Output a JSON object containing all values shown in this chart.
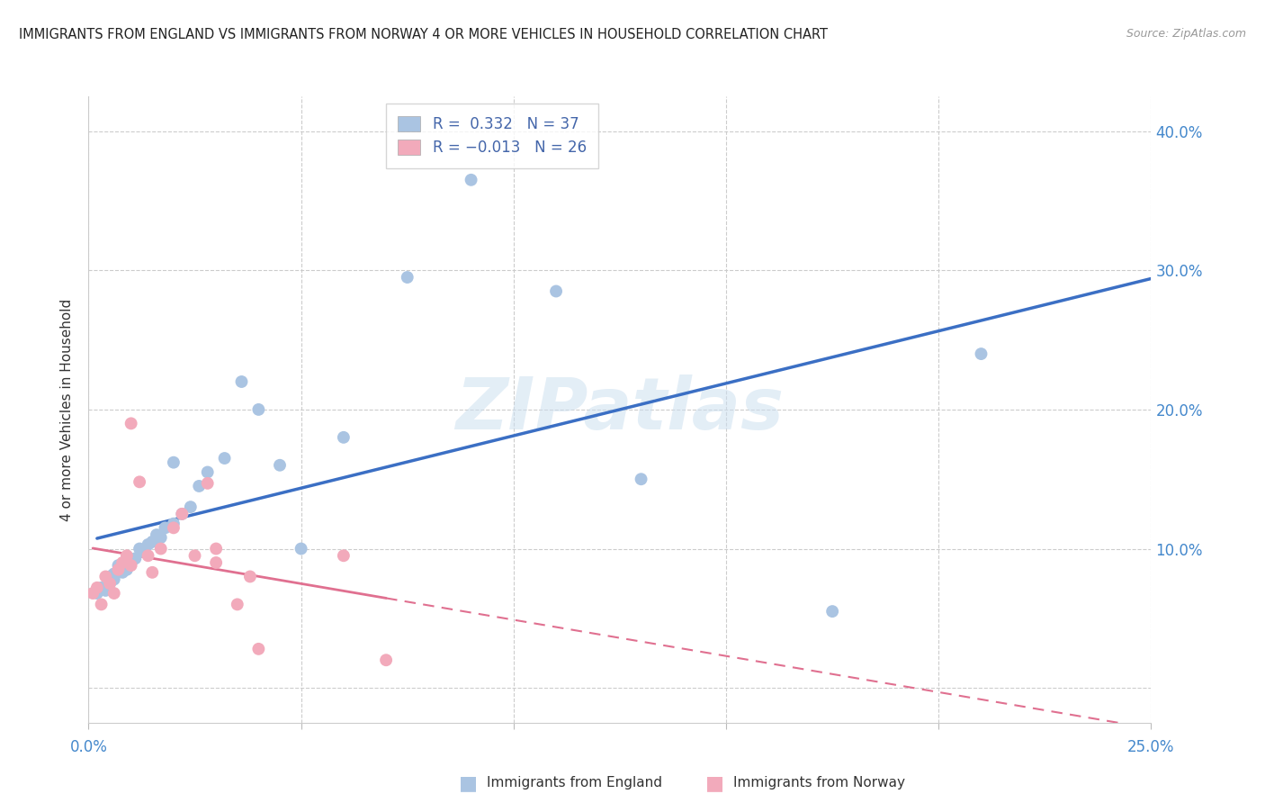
{
  "title": "IMMIGRANTS FROM ENGLAND VS IMMIGRANTS FROM NORWAY 4 OR MORE VEHICLES IN HOUSEHOLD CORRELATION CHART",
  "source": "Source: ZipAtlas.com",
  "ylabel": "4 or more Vehicles in Household",
  "xlim": [
    0.0,
    0.25
  ],
  "ylim": [
    -0.025,
    0.425
  ],
  "yticks": [
    0.0,
    0.1,
    0.2,
    0.3,
    0.4
  ],
  "ytick_labels": [
    "",
    "10.0%",
    "20.0%",
    "30.0%",
    "40.0%"
  ],
  "xticks": [
    0.0,
    0.05,
    0.1,
    0.15,
    0.2,
    0.25
  ],
  "england_R": 0.332,
  "england_N": 37,
  "norway_R": -0.013,
  "norway_N": 26,
  "england_color": "#aac4e2",
  "norway_color": "#f2aabb",
  "england_line_color": "#3b6fc4",
  "norway_line_color": "#e07090",
  "background_color": "#ffffff",
  "watermark": "ZIPatlas",
  "england_x": [
    0.002,
    0.003,
    0.004,
    0.005,
    0.005,
    0.006,
    0.006,
    0.007,
    0.008,
    0.009,
    0.01,
    0.011,
    0.012,
    0.013,
    0.014,
    0.015,
    0.016,
    0.017,
    0.018,
    0.02,
    0.022,
    0.024,
    0.026,
    0.028,
    0.032,
    0.036,
    0.04,
    0.045,
    0.05,
    0.06,
    0.075,
    0.09,
    0.11,
    0.13,
    0.175,
    0.21,
    0.02
  ],
  "england_y": [
    0.068,
    0.072,
    0.07,
    0.075,
    0.08,
    0.078,
    0.082,
    0.088,
    0.083,
    0.085,
    0.09,
    0.093,
    0.1,
    0.098,
    0.103,
    0.105,
    0.11,
    0.108,
    0.115,
    0.118,
    0.125,
    0.13,
    0.145,
    0.155,
    0.165,
    0.22,
    0.2,
    0.16,
    0.1,
    0.18,
    0.295,
    0.365,
    0.285,
    0.15,
    0.055,
    0.24,
    0.162
  ],
  "norway_x": [
    0.001,
    0.002,
    0.003,
    0.004,
    0.005,
    0.006,
    0.007,
    0.008,
    0.009,
    0.01,
    0.012,
    0.014,
    0.015,
    0.017,
    0.02,
    0.022,
    0.025,
    0.028,
    0.03,
    0.03,
    0.035,
    0.038,
    0.04,
    0.01,
    0.06,
    0.07
  ],
  "norway_y": [
    0.068,
    0.072,
    0.06,
    0.08,
    0.075,
    0.068,
    0.085,
    0.09,
    0.095,
    0.088,
    0.148,
    0.095,
    0.083,
    0.1,
    0.115,
    0.125,
    0.095,
    0.147,
    0.09,
    0.1,
    0.06,
    0.08,
    0.028,
    0.19,
    0.095,
    0.02
  ]
}
